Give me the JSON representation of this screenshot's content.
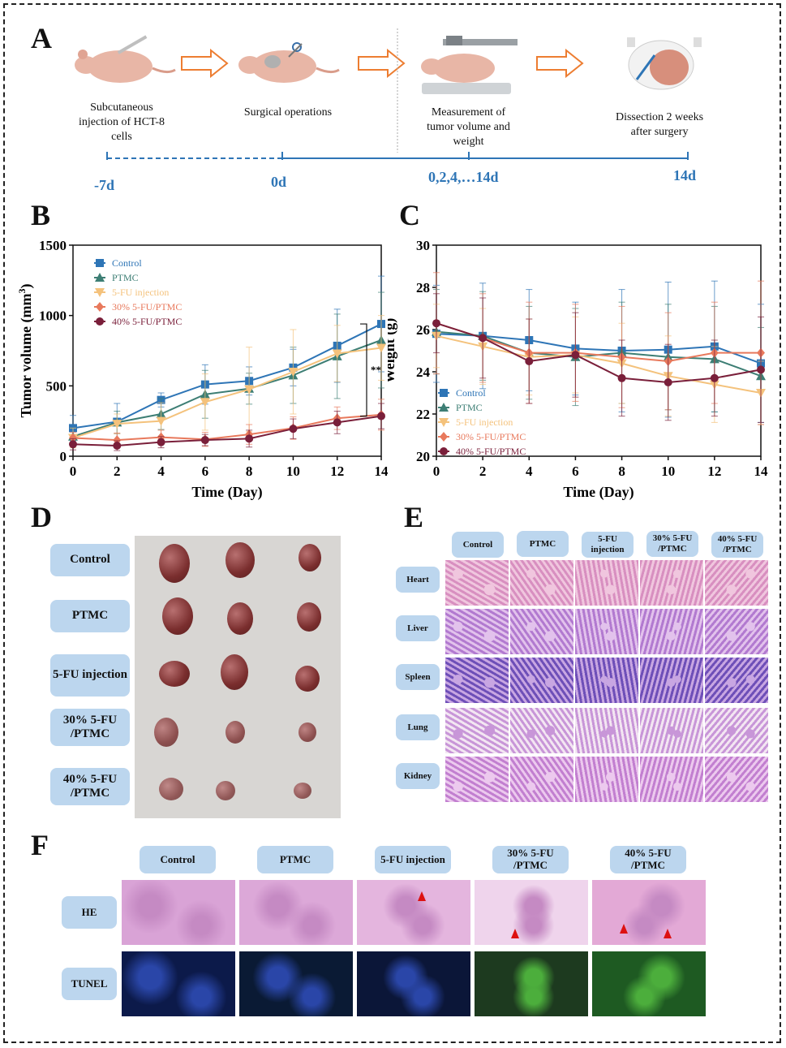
{
  "panel_labels": {
    "a": "A",
    "b": "B",
    "c": "C",
    "d": "D",
    "e": "E",
    "f": "F"
  },
  "timeline": {
    "steps": [
      {
        "text": "Subcutaneous injection of HCT-8 cells"
      },
      {
        "text": "Surgical operations"
      },
      {
        "text": "Measurement of tumor volume and weight"
      },
      {
        "text": "Dissection 2 weeks after surgery"
      }
    ],
    "days": [
      "-7d",
      "0d",
      "0,2,4,…14d",
      "14d"
    ]
  },
  "chart_data": [
    {
      "type": "line",
      "panel": "B",
      "xlabel": "Time (Day)",
      "ylabel": "Tumor volume (mm",
      "ylabel_sup": "3",
      "ylabel_end": ")",
      "x": [
        0,
        2,
        4,
        6,
        8,
        10,
        12,
        14
      ],
      "xlim": [
        0,
        14
      ],
      "ylim": [
        0,
        1500
      ],
      "yticks": [
        0,
        500,
        1000,
        1500
      ],
      "significance": "**",
      "series": [
        {
          "name": "Control",
          "color": "#2e75b6",
          "marker": "square",
          "values": [
            200,
            245,
            400,
            510,
            535,
            630,
            785,
            940
          ],
          "err": [
            90,
            130,
            50,
            140,
            100,
            130,
            260,
            340
          ]
        },
        {
          "name": "PTMC",
          "color": "#3d7e74",
          "marker": "triangle",
          "values": [
            140,
            240,
            300,
            440,
            480,
            575,
            710,
            825
          ],
          "err": [
            60,
            80,
            110,
            170,
            110,
            200,
            300,
            340
          ]
        },
        {
          "name": "5-FU injection",
          "color": "#f4c27c",
          "marker": "triangle-down",
          "values": [
            130,
            230,
            250,
            385,
            475,
            600,
            730,
            770
          ],
          "err": [
            70,
            70,
            130,
            200,
            300,
            300,
            200,
            230
          ]
        },
        {
          "name": "30% 5-FU/PTMC",
          "color": "#e8795c",
          "marker": "diamond",
          "values": [
            130,
            115,
            135,
            120,
            155,
            200,
            270,
            295
          ],
          "err": [
            40,
            50,
            50,
            50,
            70,
            80,
            80,
            110
          ]
        },
        {
          "name": "40% 5-FU/PTMC",
          "color": "#7a1f3a",
          "marker": "circle",
          "values": [
            85,
            75,
            100,
            115,
            125,
            195,
            240,
            285
          ],
          "err": [
            40,
            35,
            40,
            40,
            60,
            70,
            80,
            90
          ]
        }
      ]
    },
    {
      "type": "line",
      "panel": "C",
      "xlabel": "Time (Day)",
      "ylabel": "Weight (g)",
      "x": [
        0,
        2,
        4,
        6,
        8,
        10,
        12,
        14
      ],
      "xlim": [
        0,
        14
      ],
      "ylim": [
        20,
        30
      ],
      "yticks": [
        20,
        22,
        24,
        26,
        28,
        30
      ],
      "series": [
        {
          "name": "Control",
          "color": "#2e75b6",
          "marker": "square",
          "values": [
            25.8,
            25.7,
            25.5,
            25.1,
            25.0,
            25.05,
            25.2,
            24.4
          ],
          "err": [
            2.3,
            2.5,
            2.4,
            2.2,
            2.9,
            3.2,
            3.1,
            2.8
          ]
        },
        {
          "name": "PTMC",
          "color": "#3d7e74",
          "marker": "triangle",
          "values": [
            25.9,
            25.7,
            24.9,
            24.7,
            24.9,
            24.7,
            24.6,
            23.8
          ],
          "err": [
            2.0,
            2.1,
            2.2,
            2.3,
            2.4,
            2.5,
            2.5,
            2.3
          ]
        },
        {
          "name": "5-FU injection",
          "color": "#f4c27c",
          "marker": "triangle-down",
          "values": [
            25.7,
            25.2,
            24.7,
            24.8,
            24.4,
            23.8,
            23.4,
            23.0
          ],
          "err": [
            1.5,
            1.8,
            1.8,
            1.8,
            1.9,
            1.9,
            1.8,
            1.5
          ]
        },
        {
          "name": "30% 5-FU/PTMC",
          "color": "#e8795c",
          "marker": "diamond",
          "values": [
            26.3,
            25.6,
            24.9,
            24.9,
            24.7,
            24.5,
            24.9,
            24.9
          ],
          "err": [
            2.4,
            2.1,
            2.4,
            2.3,
            2.4,
            2.3,
            2.4,
            3.4
          ]
        },
        {
          "name": "40% 5-FU/PTMC",
          "color": "#7a1f3a",
          "marker": "circle",
          "values": [
            26.3,
            25.6,
            24.5,
            24.8,
            23.7,
            23.5,
            23.7,
            24.1
          ],
          "err": [
            1.4,
            1.9,
            2.0,
            2.0,
            1.8,
            1.8,
            1.8,
            2.5
          ]
        }
      ]
    }
  ],
  "panel_d": {
    "groups": [
      "Control",
      "PTMC",
      "5-FU injection",
      "30% 5-FU /PTMC",
      "40% 5-FU /PTMC"
    ]
  },
  "panel_e": {
    "columns": [
      "Control",
      "PTMC",
      "5-FU injection",
      "30% 5-FU /PTMC",
      "40% 5-FU /PTMC"
    ],
    "rows": [
      "Heart",
      "Liver",
      "Spleen",
      "Lung",
      "Kidney"
    ]
  },
  "panel_f": {
    "columns": [
      "Control",
      "PTMC",
      "5-FU injection",
      "30% 5-FU /PTMC",
      "40% 5-FU /PTMC"
    ],
    "rows": [
      "HE",
      "TUNEL"
    ]
  },
  "colors": {
    "accent": "#2e75b6",
    "chip": "#bcd6ee",
    "arrow": "#ed7d31"
  }
}
